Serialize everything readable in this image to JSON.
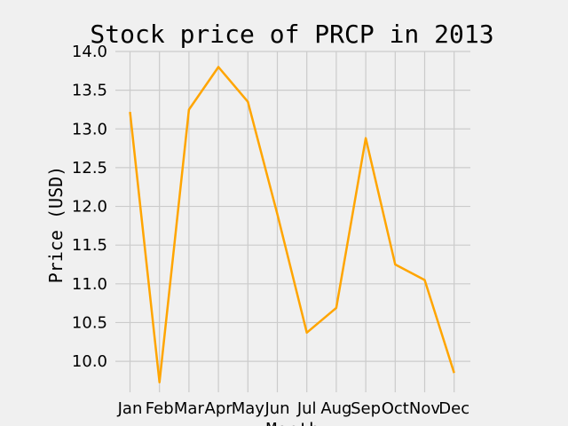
{
  "chart_data": {
    "type": "line",
    "title": "Stock price of PRCP in 2013",
    "xlabel": "Month",
    "ylabel": "Price (USD)",
    "categories": [
      "Jan",
      "Feb",
      "Mar",
      "Apr",
      "May",
      "Jun",
      "Jul",
      "Aug",
      "Sep",
      "Oct",
      "Nov",
      "Dec"
    ],
    "series": [
      {
        "values": [
          13.22,
          9.73,
          13.25,
          13.8,
          13.35,
          11.9,
          10.37,
          10.69,
          12.88,
          11.25,
          11.05,
          9.85
        ],
        "color": "#ffa500"
      }
    ],
    "ylim": [
      9.6,
      14.0
    ],
    "yticks": [
      "10.0",
      "10.5",
      "11.0",
      "11.5",
      "12.0",
      "12.5",
      "13.0",
      "13.5",
      "14.0"
    ],
    "grid": true,
    "background": "#f0f0f0"
  }
}
